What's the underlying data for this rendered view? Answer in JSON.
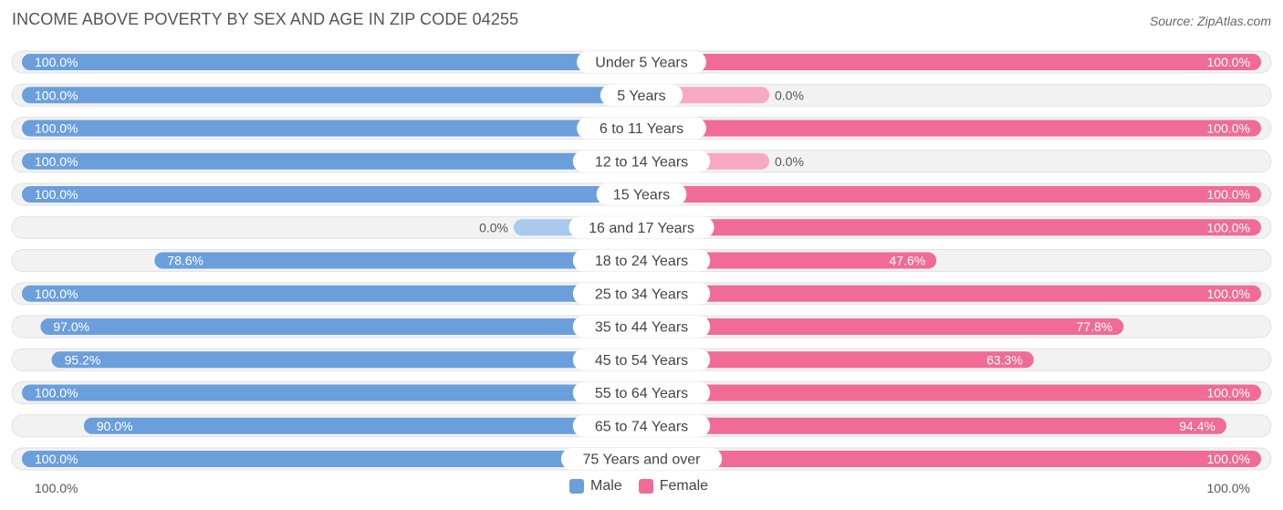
{
  "header": {
    "title": "INCOME ABOVE POVERTY BY SEX AND AGE IN ZIP CODE 04255",
    "source": "Source: ZipAtlas.com"
  },
  "footer": {
    "left_label": "100.0%",
    "right_label": "100.0%"
  },
  "colors": {
    "male_full": "#6a9fdc",
    "male_light": "#a9c9ee",
    "female_full": "#f06b95",
    "female_light": "#f7a8c2",
    "row_bg": "#f2f2f2"
  },
  "chart_data": {
    "type": "bar",
    "title": "INCOME ABOVE POVERTY BY SEX AND AGE IN ZIP CODE 04255",
    "categories": [
      "Under 5 Years",
      "5 Years",
      "6 to 11 Years",
      "12 to 14 Years",
      "15 Years",
      "16 and 17 Years",
      "18 to 24 Years",
      "25 to 34 Years",
      "35 to 44 Years",
      "45 to 54 Years",
      "55 to 64 Years",
      "65 to 74 Years",
      "75 Years and over"
    ],
    "series": [
      {
        "name": "Male",
        "values": [
          100.0,
          100.0,
          100.0,
          100.0,
          100.0,
          0.0,
          78.6,
          100.0,
          97.0,
          95.2,
          100.0,
          90.0,
          100.0
        ]
      },
      {
        "name": "Female",
        "values": [
          100.0,
          0.0,
          100.0,
          0.0,
          100.0,
          100.0,
          47.6,
          100.0,
          77.8,
          63.3,
          100.0,
          94.4,
          100.0
        ]
      }
    ],
    "value_labels": {
      "Male": [
        "100.0%",
        "100.0%",
        "100.0%",
        "100.0%",
        "100.0%",
        "0.0%",
        "78.6%",
        "100.0%",
        "97.0%",
        "95.2%",
        "100.0%",
        "90.0%",
        "100.0%"
      ],
      "Female": [
        "100.0%",
        "0.0%",
        "100.0%",
        "0.0%",
        "100.0%",
        "100.0%",
        "47.6%",
        "100.0%",
        "77.8%",
        "63.3%",
        "100.0%",
        "94.4%",
        "100.0%"
      ]
    },
    "xlim": [
      0,
      100
    ],
    "legend": {
      "position": "bottom-center",
      "entries": [
        "Male",
        "Female"
      ]
    }
  }
}
